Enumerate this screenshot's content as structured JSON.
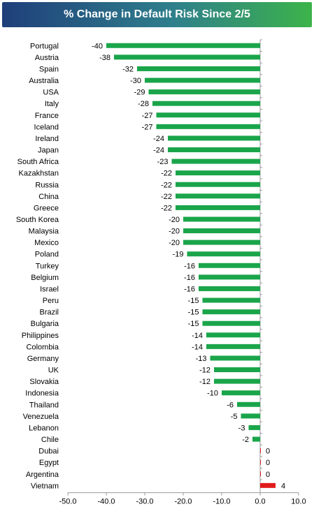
{
  "chart_data": {
    "type": "bar",
    "orientation": "horizontal",
    "title": "% Change in Default Risk Since 2/5",
    "categories": [
      "Portugal",
      "Austria",
      "Spain",
      "Australia",
      "USA",
      "Italy",
      "France",
      "Iceland",
      "Ireland",
      "Japan",
      "South Africa",
      "Kazakhstan",
      "Russia",
      "China",
      "Greece",
      "South Korea",
      "Malaysia",
      "Mexico",
      "Poland",
      "Turkey",
      "Belgium",
      "Israel",
      "Peru",
      "Brazil",
      "Bulgaria",
      "Philippines",
      "Colombia",
      "Germany",
      "UK",
      "Slovakia",
      "Indonesia",
      "Thailand",
      "Venezuela",
      "Lebanon",
      "Chile",
      "Dubai",
      "Egypt",
      "Argentina",
      "Vietnam"
    ],
    "values": [
      -40,
      -38,
      -32,
      -30,
      -29,
      -28,
      -27,
      -27,
      -24,
      -24,
      -23,
      -22,
      -22,
      -22,
      -22,
      -20,
      -20,
      -20,
      -19,
      -16,
      -16,
      -16,
      -15,
      -15,
      -15,
      -14,
      -14,
      -13,
      -12,
      -12,
      -10,
      -6,
      -5,
      -3,
      -2,
      0,
      0,
      0,
      4
    ],
    "data_labels": [
      "-40",
      "-38",
      "-32",
      "-30",
      "-29",
      "-28",
      "-27",
      "-27",
      "-24",
      "-24",
      "-23",
      "-22",
      "-22",
      "-22",
      "-22",
      "-20",
      "-20",
      "-20",
      "-19",
      "-16",
      "-16",
      "-16",
      "-15",
      "-15",
      "-15",
      "-14",
      "-14",
      "-13",
      "-12",
      "-12",
      "-10",
      "-6",
      "-5",
      "-3",
      "-2",
      "0",
      "0",
      "0",
      "4"
    ],
    "xlim": [
      -50,
      10
    ],
    "xticks": [
      -50,
      -40,
      -30,
      -20,
      -10,
      0,
      10
    ],
    "xtick_labels": [
      "-50.0",
      "-40.0",
      "-30.0",
      "-20.0",
      "-10.0",
      "0.0",
      "10.0"
    ],
    "xlabel": "",
    "ylabel": "",
    "grid": false,
    "legend": "none",
    "colors": {
      "negative": "#1aa54a",
      "positive": "#e01b1b",
      "title_left": "#1f3f7a",
      "title_right": "#3cb34a"
    }
  }
}
